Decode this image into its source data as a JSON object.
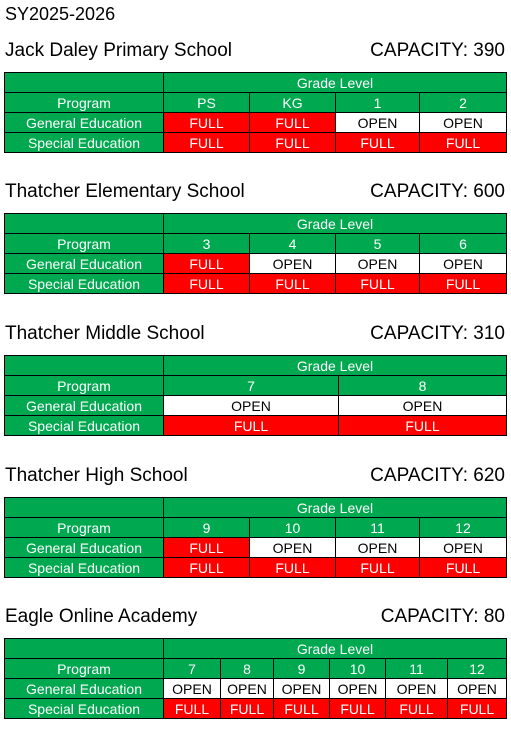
{
  "school_year": "SY2025-2026",
  "grade_level_label": "Grade Level",
  "program_label": "Program",
  "schools": [
    {
      "name": "Jack Daley Primary School",
      "capacity": "CAPACITY: 390",
      "grades": [
        "PS",
        "KG",
        "1",
        "2"
      ],
      "rows": [
        {
          "program": "General Education",
          "status": [
            "FULL",
            "FULL",
            "OPEN",
            "OPEN"
          ]
        },
        {
          "program": "Special Education",
          "status": [
            "FULL",
            "FULL",
            "FULL",
            "FULL"
          ]
        }
      ]
    },
    {
      "name": "Thatcher Elementary School",
      "capacity": "CAPACITY: 600",
      "grades": [
        "3",
        "4",
        "5",
        "6"
      ],
      "rows": [
        {
          "program": "General Education",
          "status": [
            "FULL",
            "OPEN",
            "OPEN",
            "OPEN"
          ]
        },
        {
          "program": "Special Education",
          "status": [
            "FULL",
            "FULL",
            "FULL",
            "FULL"
          ]
        }
      ]
    },
    {
      "name": "Thatcher Middle School",
      "capacity": "CAPACITY: 310",
      "grades": [
        "7",
        "8"
      ],
      "rows": [
        {
          "program": "General Education",
          "status": [
            "OPEN",
            "OPEN"
          ]
        },
        {
          "program": "Special Education",
          "status": [
            "FULL",
            "FULL"
          ]
        }
      ]
    },
    {
      "name": "Thatcher High School",
      "capacity": "CAPACITY: 620",
      "grades": [
        "9",
        "10",
        "11",
        "12"
      ],
      "rows": [
        {
          "program": "General Education",
          "status": [
            "FULL",
            "OPEN",
            "OPEN",
            "OPEN"
          ]
        },
        {
          "program": "Special Education",
          "status": [
            "FULL",
            "FULL",
            "FULL",
            "FULL"
          ]
        }
      ]
    },
    {
      "name": "Eagle Online Academy",
      "capacity": "CAPACITY: 80",
      "grades": [
        "7",
        "8",
        "9",
        "10",
        "11",
        "12"
      ],
      "rows": [
        {
          "program": "General Education",
          "status": [
            "OPEN",
            "OPEN",
            "OPEN",
            "OPEN",
            "OPEN",
            "OPEN"
          ]
        },
        {
          "program": "Special Education",
          "status": [
            "FULL",
            "FULL",
            "FULL",
            "FULL",
            "FULL",
            "FULL"
          ]
        }
      ]
    }
  ],
  "colors": {
    "header_green": "#00a94f",
    "full_red": "#ff0000",
    "open_white": "#ffffff"
  }
}
